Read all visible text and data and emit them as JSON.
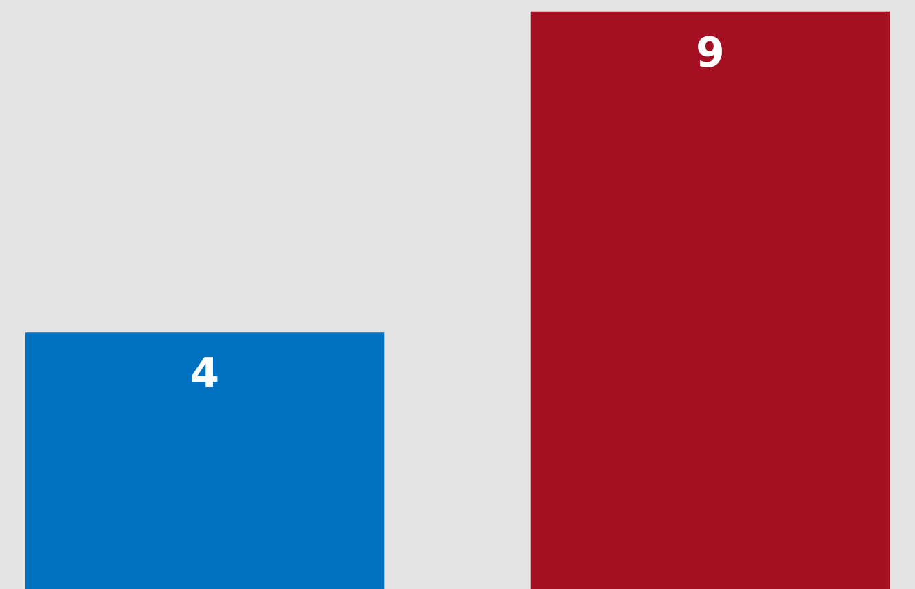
{
  "chart_data": {
    "type": "bar",
    "categories": [
      null,
      null
    ],
    "values": [
      4,
      9
    ],
    "colors": [
      "#0070c0",
      "#a50f22"
    ],
    "data_labels": true,
    "tick_labels": false
  }
}
